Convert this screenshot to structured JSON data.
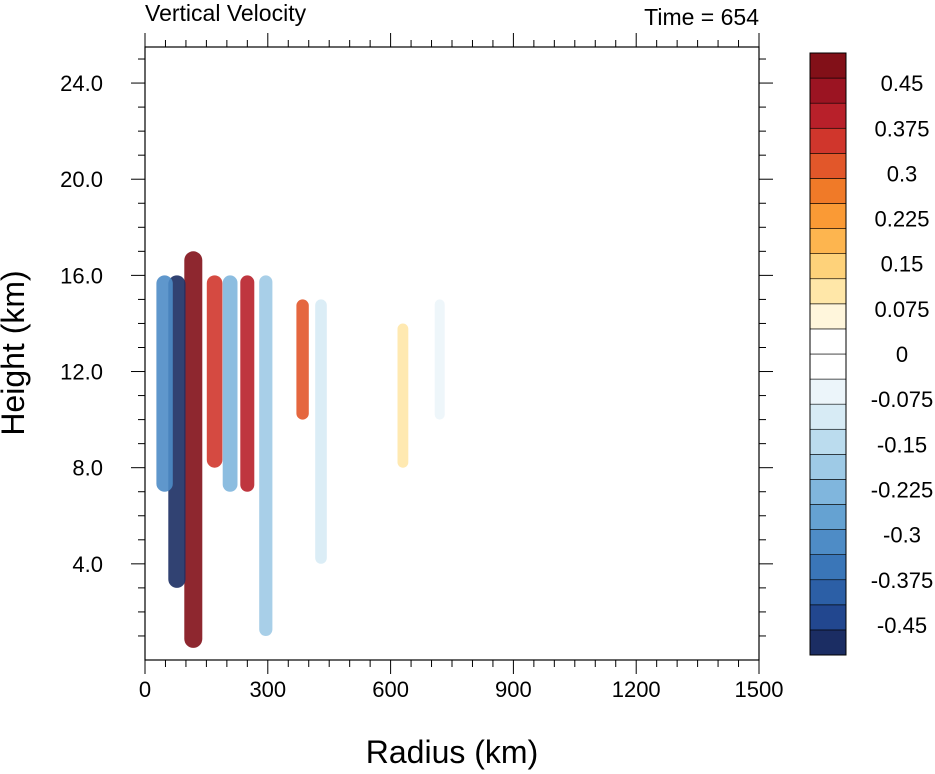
{
  "chart_data": {
    "type": "heatmap",
    "title": "Vertical Velocity",
    "subtitle": "Time = 654",
    "xlabel": "Radius (km)",
    "ylabel": "Height (km)",
    "xlim": [
      0,
      1500
    ],
    "ylim": [
      0,
      25.5
    ],
    "x_ticks": [
      0,
      300,
      600,
      900,
      1200,
      1500
    ],
    "x_tick_labels": [
      "0",
      "300",
      "600",
      "900",
      "1200",
      "1500"
    ],
    "y_ticks": [
      4,
      8,
      12,
      16,
      20,
      24
    ],
    "y_tick_labels": [
      "4.0",
      "8.0",
      "12.0",
      "16.0",
      "20.0",
      "24.0"
    ],
    "colorbar": {
      "levels": [
        -0.5,
        -0.475,
        -0.45,
        -0.425,
        -0.4,
        -0.375,
        -0.35,
        -0.325,
        -0.3,
        -0.275,
        -0.25,
        -0.225,
        -0.2,
        -0.175,
        -0.15,
        -0.125,
        -0.1,
        -0.075,
        -0.05,
        -0.025,
        0,
        0.025,
        0.05,
        0.075,
        0.1,
        0.125,
        0.15,
        0.175,
        0.2,
        0.225,
        0.25,
        0.275,
        0.3,
        0.325,
        0.35,
        0.375,
        0.4,
        0.425,
        0.45,
        0.475,
        0.5
      ],
      "labelled_values": [
        0.45,
        0.375,
        0.3,
        0.225,
        0.15,
        0.075,
        0,
        -0.075,
        -0.15,
        -0.225,
        -0.3,
        -0.375,
        -0.45
      ],
      "labels": [
        "0.45",
        "0.375",
        "0.3",
        "0.225",
        "0.15",
        "0.075",
        "0",
        "-0.075",
        "-0.15",
        "-0.225",
        "-0.3",
        "-0.375",
        "-0.45"
      ],
      "colors_low_to_high": [
        "#1b2d63",
        "#22478f",
        "#2c5fa6",
        "#3a76b8",
        "#4e8cc6",
        "#65a2d2",
        "#80b6dd",
        "#9ecae6",
        "#bbdcee",
        "#d7ebf5",
        "#ecf5fa",
        "#ffffff",
        "#ffffff",
        "#fff6dc",
        "#ffe7a8",
        "#fed27a",
        "#fdb54f",
        "#fa9a35",
        "#f07a28",
        "#e2572a",
        "#d0362c",
        "#b8202a",
        "#9b1422",
        "#821018"
      ]
    },
    "features": [
      {
        "r_km": 118,
        "z_range_km": [
          0.5,
          17
        ],
        "w": 0.5
      },
      {
        "r_km": 78,
        "z_range_km": [
          3,
          16
        ],
        "w": -0.5
      },
      {
        "r_km": 48,
        "z_range_km": [
          7,
          16
        ],
        "w": -0.3
      },
      {
        "r_km": 170,
        "z_range_km": [
          8,
          16
        ],
        "w": 0.35
      },
      {
        "r_km": 208,
        "z_range_km": [
          7,
          16
        ],
        "w": -0.25
      },
      {
        "r_km": 250,
        "z_range_km": [
          7,
          16
        ],
        "w": 0.4
      },
      {
        "r_km": 295,
        "z_range_km": [
          1,
          16
        ],
        "w": -0.2
      },
      {
        "r_km": 385,
        "z_range_km": [
          10,
          15
        ],
        "w": 0.3
      },
      {
        "r_km": 430,
        "z_range_km": [
          4,
          15
        ],
        "w": -0.1
      },
      {
        "r_km": 630,
        "z_range_km": [
          8,
          14
        ],
        "w": 0.1
      },
      {
        "r_km": 720,
        "z_range_km": [
          10,
          15
        ],
        "w": -0.05
      }
    ]
  }
}
